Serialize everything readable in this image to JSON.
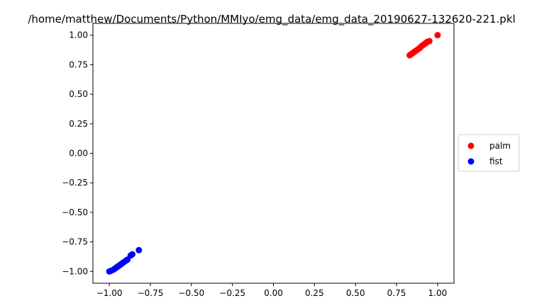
{
  "chart_data": {
    "type": "scatter",
    "title": "/home/matthew/Documents/Python/MMIyo/emg_data/emg_data_20190627-132620-221.pkl",
    "xlabel": "",
    "ylabel": "",
    "xlim": [
      -1.1,
      1.1
    ],
    "ylim": [
      -1.1,
      1.1
    ],
    "grid": false,
    "legend_position": "center-right, outside axes",
    "x_ticks": [
      -1.0,
      -0.75,
      -0.5,
      -0.25,
      0.0,
      0.25,
      0.5,
      0.75,
      1.0
    ],
    "x_tick_labels": [
      "−1.00",
      "−0.75",
      "−0.50",
      "−0.25",
      "0.00",
      "0.25",
      "0.50",
      "0.75",
      "1.00"
    ],
    "y_ticks": [
      1.0,
      0.75,
      0.5,
      0.25,
      0.0,
      -0.25,
      -0.5,
      -0.75,
      -1.0
    ],
    "y_tick_labels": [
      "1.00",
      "0.75",
      "0.50",
      "0.25",
      "0.00",
      "−0.25",
      "−0.50",
      "−0.75",
      "−1.00"
    ],
    "series": [
      {
        "name": "palm",
        "color": "#ff0000",
        "points": [
          [
            1.0,
            1.0
          ],
          [
            0.95,
            0.95
          ],
          [
            0.94,
            0.945
          ],
          [
            0.93,
            0.935
          ],
          [
            0.92,
            0.925
          ],
          [
            0.91,
            0.915
          ],
          [
            0.9,
            0.905
          ],
          [
            0.895,
            0.895
          ],
          [
            0.885,
            0.885
          ],
          [
            0.875,
            0.875
          ],
          [
            0.865,
            0.865
          ],
          [
            0.86,
            0.86
          ],
          [
            0.85,
            0.85
          ],
          [
            0.845,
            0.845
          ],
          [
            0.835,
            0.835
          ],
          [
            0.83,
            0.83
          ]
        ]
      },
      {
        "name": "fist",
        "color": "#0000ff",
        "points": [
          [
            -1.0,
            -1.0
          ],
          [
            -0.99,
            -0.995
          ],
          [
            -0.975,
            -0.985
          ],
          [
            -0.965,
            -0.975
          ],
          [
            -0.955,
            -0.965
          ],
          [
            -0.945,
            -0.955
          ],
          [
            -0.935,
            -0.945
          ],
          [
            -0.925,
            -0.935
          ],
          [
            -0.915,
            -0.925
          ],
          [
            -0.9,
            -0.91
          ],
          [
            -0.89,
            -0.9
          ],
          [
            -0.87,
            -0.865
          ],
          [
            -0.86,
            -0.855
          ],
          [
            -0.82,
            -0.82
          ]
        ]
      }
    ]
  }
}
